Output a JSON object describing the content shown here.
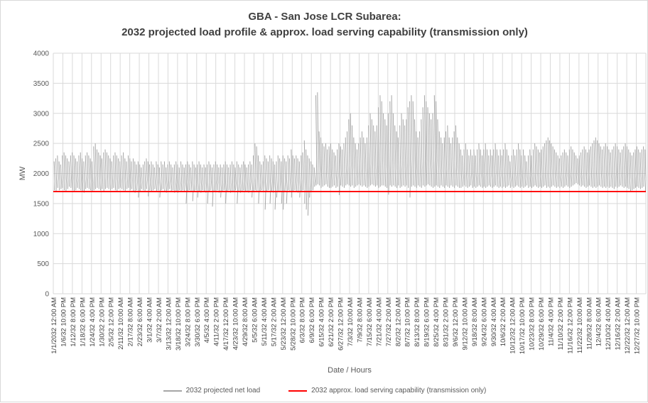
{
  "chart_data": {
    "type": "line",
    "title": "GBA - San Jose LCR Subarea:",
    "subtitle": "2032 projected load profile & approx. load serving capability (transmission only)",
    "xlabel": "Date / Hours",
    "ylabel": "MW",
    "ylim": [
      0,
      4000
    ],
    "yticks": [
      0,
      500,
      1000,
      1500,
      2000,
      2500,
      3000,
      3500,
      4000
    ],
    "xticks": [
      "1/1/2032 12:00 AM",
      "1/6/32 10:00 PM",
      "1/12/32 8:00 PM",
      "1/18/32 6:00 PM",
      "1/24/32 4:00 PM",
      "1/30/32 2:00 PM",
      "2/5/32 12:00 PM",
      "2/11/32 10:00 AM",
      "2/17/32 8:00 AM",
      "2/23/32 6:00 AM",
      "3/1/32 4:00 AM",
      "3/7/32 2:00 AM",
      "3/13/32 12:00 AM",
      "3/18/32 10:00 PM",
      "3/24/32 8:00 PM",
      "3/30/32 6:00 PM",
      "4/5/32 4:00 PM",
      "4/11/32 2:00 PM",
      "4/17/32 12:00 PM",
      "4/23/32 10:00 AM",
      "4/29/32 8:00 AM",
      "5/5/32 6:00 AM",
      "5/11/32 4:00 AM",
      "5/17/32 2:00 AM",
      "5/23/32 12:00 AM",
      "5/28/32 10:00 PM",
      "6/3/32 8:00 PM",
      "6/9/32 6:00 PM",
      "6/15/32 4:00 PM",
      "6/21/32 2:00 PM",
      "6/27/32 12:00 PM",
      "7/3/32 10:00 AM",
      "7/9/32 8:00 AM",
      "7/15/32 6:00 AM",
      "7/21/32 4:00 AM",
      "7/27/32 2:00 AM",
      "8/2/32 12:00 AM",
      "8/7/32 10:00 PM",
      "8/13/32 8:00 PM",
      "8/19/32 6:00 PM",
      "8/25/32 4:00 PM",
      "8/31/32 2:00 PM",
      "9/6/32 12:00 PM",
      "9/12/32 10:00 AM",
      "9/18/32 8:00 AM",
      "9/24/32 6:00 AM",
      "9/30/32 4:00 AM",
      "10/6/32 2:00 AM",
      "10/12/32 12:00 AM",
      "10/17/32 10:00 PM",
      "10/23/32 8:00 PM",
      "10/29/32 6:00 PM",
      "11/4/32 4:00 PM",
      "11/10/32 2:00 PM",
      "11/16/32 12:00 PM",
      "11/22/32 10:00 AM",
      "11/28/32 8:00 AM",
      "12/4/32 6:00 AM",
      "12/10/32 4:00 AM",
      "12/16/32 2:00 AM",
      "12/22/32 12:00 AM",
      "12/27/32 10:00 PM"
    ],
    "grid": true,
    "legend_position": "bottom",
    "series": [
      {
        "name": "2032 projected net load",
        "color": "#a6a6a6",
        "resolution": "daily min/max envelope",
        "daily_min": [
          1720,
          1700,
          1760,
          1720,
          1740,
          1760,
          1720,
          1700,
          1740,
          1780,
          1760,
          1720,
          1700,
          1720,
          1760,
          1740,
          1720,
          1700,
          1680,
          1740,
          1760,
          1740,
          1720,
          1700,
          1720,
          1740,
          1760,
          1740,
          1720,
          1740,
          1700,
          1740,
          1760,
          1740,
          1720,
          1740,
          1760,
          1720,
          1700,
          1740,
          1760,
          1740,
          1720,
          1700,
          1740,
          1760,
          1720,
          1740,
          1700,
          1680,
          1720,
          1600,
          1700,
          1740,
          1720,
          1700,
          1740,
          1620,
          1720,
          1700,
          1720,
          1740,
          1700,
          1720,
          1600,
          1720,
          1740,
          1700,
          1680,
          1720,
          1740,
          1700,
          1720,
          1680,
          1700,
          1680,
          1720,
          1700,
          1720,
          1700,
          1500,
          1700,
          1720,
          1700,
          1540,
          1700,
          1720,
          1600,
          1700,
          1680,
          1720,
          1700,
          1680,
          1500,
          1700,
          1720,
          1450,
          1700,
          1700,
          1720,
          1680,
          1600,
          1700,
          1720,
          1500,
          1700,
          1720,
          1680,
          1700,
          1700,
          1720,
          1500,
          1700,
          1680,
          1700,
          1720,
          1700,
          1700,
          1680,
          1720,
          1600,
          1700,
          1720,
          1700,
          1500,
          1700,
          1720,
          1700,
          1400,
          1700,
          1720,
          1500,
          1700,
          1680,
          1400,
          1600,
          1700,
          1700,
          1500,
          1400,
          1700,
          1500,
          1720,
          1700,
          1600,
          1700,
          1720,
          1700,
          1680,
          1600,
          1700,
          1720,
          1500,
          1400,
          1300,
          1600,
          1700,
          1720,
          1780,
          1800,
          1820,
          1800,
          1760,
          1780,
          1800,
          1820,
          1780,
          1760,
          1760,
          1780,
          1800,
          1760,
          1780,
          1640,
          1800,
          1780,
          1760,
          1800,
          1820,
          1800,
          1780,
          1800,
          1760,
          1780,
          1800,
          1820,
          1800,
          1780,
          1800,
          1780,
          1760,
          1780,
          1800,
          1820,
          1800,
          1780,
          1800,
          1760,
          1780,
          1800,
          1800,
          1780,
          1760,
          1650,
          1800,
          1780,
          1800,
          1780,
          1760,
          1800,
          1760,
          1780,
          1800,
          1780,
          1800,
          1760,
          1600,
          1780,
          1800,
          1780,
          1760,
          1800,
          1780,
          1760,
          1800,
          1780,
          1800,
          1820,
          1800,
          1780,
          1760,
          1780,
          1800,
          1780,
          1760,
          1800,
          1780,
          1760,
          1800,
          1780,
          1760,
          1800,
          1780,
          1760,
          1800,
          1780,
          1760,
          1760,
          1780,
          1800,
          1780,
          1760,
          1780,
          1800,
          1760,
          1780,
          1760,
          1780,
          1800,
          1780,
          1760,
          1780,
          1760,
          1780,
          1800,
          1780,
          1760,
          1780,
          1800,
          1780,
          1760,
          1780,
          1760,
          1780,
          1760,
          1780,
          1800,
          1760,
          1780,
          1760,
          1780,
          1800,
          1780,
          1760,
          1780,
          1760,
          1780,
          1800,
          1760,
          1780,
          1760,
          1780,
          1800,
          1780,
          1760,
          1780,
          1760,
          1780,
          1800,
          1760,
          1780,
          1760,
          1780,
          1800,
          1780,
          1760,
          1780,
          1760,
          1780,
          1760,
          1780,
          1800,
          1780,
          1760,
          1780,
          1800,
          1820,
          1840,
          1820,
          1800,
          1780,
          1800,
          1780,
          1760,
          1780,
          1800,
          1780,
          1760,
          1780,
          1760,
          1780,
          1800,
          1780,
          1760,
          1780,
          1760,
          1780,
          1760,
          1780,
          1760,
          1740,
          1780,
          1760,
          1780,
          1800,
          1780,
          1760,
          1780,
          1760,
          1740,
          1700,
          1720,
          1740,
          1760,
          1780,
          1760,
          1740,
          1760,
          1780,
          1700,
          1740,
          1760,
          1780,
          1760,
          1740,
          1760,
          1780,
          1760,
          1740,
          1760,
          1780,
          1760,
          1740,
          1760,
          1780,
          1760,
          1740,
          1700,
          1760,
          1780,
          1760,
          1740,
          1760,
          1780,
          1760,
          1740
        ],
        "daily_max": [
          2200,
          2250,
          2300,
          2200,
          2150,
          2300,
          2350,
          2300,
          2250,
          2200,
          2300,
          2350,
          2300,
          2250,
          2200,
          2300,
          2350,
          2250,
          2200,
          2300,
          2350,
          2300,
          2250,
          2200,
          2450,
          2500,
          2400,
          2350,
          2300,
          2250,
          2350,
          2400,
          2350,
          2300,
          2250,
          2200,
          2300,
          2350,
          2300,
          2250,
          2200,
          2300,
          2350,
          2250,
          2200,
          2300,
          2250,
          2200,
          2250,
          2200,
          2150,
          2200,
          2150,
          2100,
          2150,
          2200,
          2250,
          2200,
          2150,
          2200,
          2150,
          2100,
          2200,
          2150,
          2100,
          2200,
          2150,
          2200,
          2100,
          2150,
          2200,
          2150,
          2100,
          2150,
          2200,
          2150,
          2100,
          2200,
          2150,
          2100,
          2150,
          2200,
          2150,
          2100,
          2200,
          2150,
          2100,
          2150,
          2200,
          2150,
          2100,
          2150,
          2100,
          2150,
          2200,
          2150,
          2100,
          2150,
          2200,
          2150,
          2100,
          2150,
          2100,
          2150,
          2200,
          2150,
          2100,
          2150,
          2200,
          2150,
          2100,
          2200,
          2150,
          2100,
          2150,
          2200,
          2150,
          2100,
          2150,
          2200,
          2150,
          2300,
          2500,
          2450,
          2300,
          2200,
          2150,
          2200,
          2300,
          2250,
          2200,
          2300,
          2250,
          2200,
          2150,
          2200,
          2300,
          2250,
          2200,
          2300,
          2250,
          2200,
          2300,
          2250,
          2400,
          2300,
          2250,
          2300,
          2250,
          2200,
          2300,
          2350,
          2550,
          2400,
          2300,
          2250,
          2200,
          2150,
          2100,
          3300,
          3350,
          2700,
          2600,
          2500,
          2450,
          2500,
          2400,
          2450,
          2500,
          2400,
          2350,
          2300,
          2400,
          2500,
          2450,
          2400,
          2500,
          2600,
          2700,
          2900,
          3000,
          2800,
          2600,
          2500,
          2400,
          2500,
          2600,
          2700,
          2600,
          2500,
          2600,
          2800,
          3000,
          2900,
          2800,
          2700,
          2800,
          3100,
          3300,
          3200,
          3000,
          2900,
          2800,
          3000,
          3200,
          3300,
          3000,
          2800,
          2700,
          2600,
          2800,
          3000,
          2900,
          2800,
          2900,
          3100,
          3200,
          3300,
          3200,
          2900,
          2700,
          2600,
          2700,
          2900,
          3100,
          3300,
          3200,
          3100,
          3000,
          2900,
          3000,
          3300,
          3200,
          2900,
          2700,
          2600,
          2500,
          2600,
          2700,
          2800,
          2600,
          2500,
          2600,
          2700,
          2800,
          2600,
          2500,
          2400,
          2300,
          2400,
          2500,
          2400,
          2300,
          2400,
          2300,
          2400,
          2300,
          2400,
          2500,
          2400,
          2300,
          2400,
          2500,
          2400,
          2300,
          2400,
          2300,
          2400,
          2500,
          2400,
          2300,
          2400,
          2300,
          2400,
          2500,
          2400,
          2300,
          2200,
          2300,
          2400,
          2300,
          2400,
          2500,
          2400,
          2300,
          2400,
          2300,
          2200,
          2300,
          2400,
          2300,
          2400,
          2500,
          2450,
          2400,
          2350,
          2400,
          2450,
          2500,
          2550,
          2600,
          2550,
          2500,
          2450,
          2400,
          2350,
          2300,
          2250,
          2300,
          2350,
          2400,
          2350,
          2300,
          2400,
          2450,
          2400,
          2350,
          2300,
          2250,
          2300,
          2350,
          2400,
          2450,
          2400,
          2350,
          2400,
          2450,
          2500,
          2550,
          2600,
          2550,
          2500,
          2450,
          2400,
          2450,
          2500,
          2450,
          2400,
          2350,
          2400,
          2450,
          2500,
          2450,
          2400,
          2350,
          2400,
          2450,
          2500,
          2450,
          2400,
          2350,
          2300,
          2350,
          2400,
          2450,
          2400,
          2350,
          2400,
          2450,
          2400
        ]
      },
      {
        "name": "2032 approx. load serving  capability (transmission only)",
        "color": "#ff0000",
        "value": 1700
      }
    ]
  }
}
